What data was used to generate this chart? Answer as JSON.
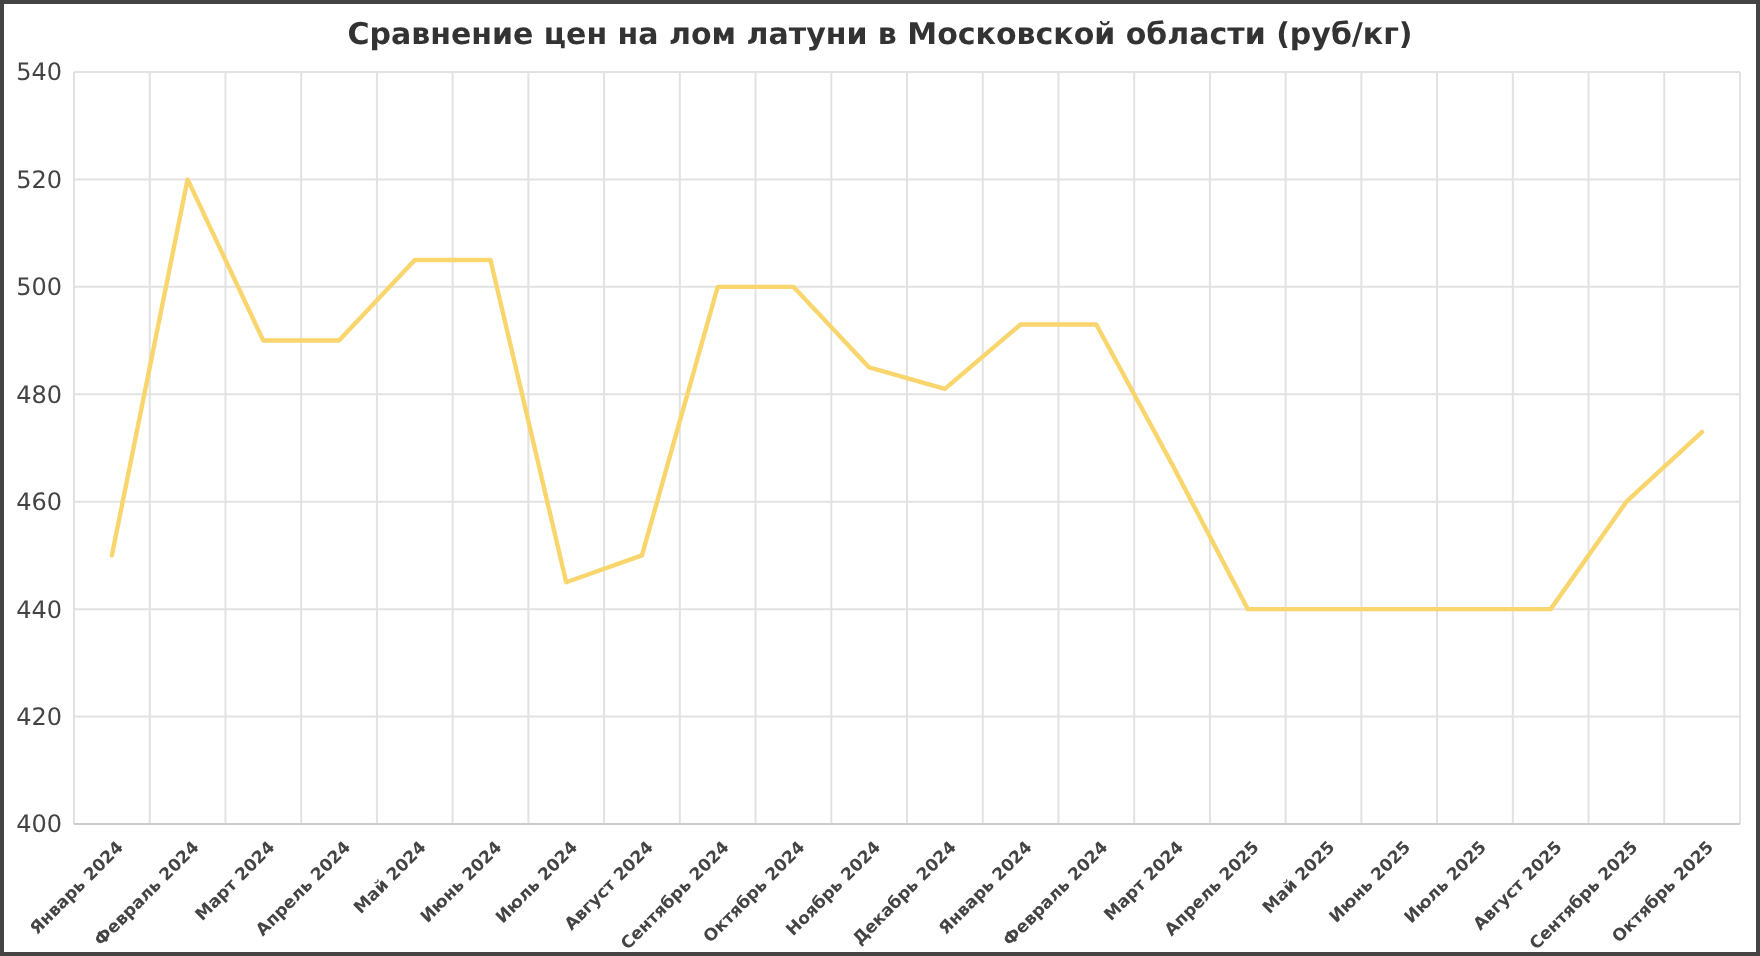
{
  "chart_data": {
    "type": "line",
    "title": "Сравнение цен на лом латуни в Московской области (руб/кг)",
    "categories": [
      "Январь 2024",
      "Февраль 2024",
      "Март 2024",
      "Апрель 2024",
      "Май 2024",
      "Июнь 2024",
      "Июль 2024",
      "Август 2024",
      "Сентябрь 2024",
      "Октябрь 2024",
      "Ноябрь 2024",
      "Декабрь 2024",
      "Январь 2024",
      "Февраль 2024",
      "Март 2024",
      "Апрель 2025",
      "Май 2025",
      "Июнь 2025",
      "Июль 2025",
      "Август 2025",
      "Сентябрь 2025",
      "Октябрь 2025"
    ],
    "series": [
      {
        "color": "#f8d66d",
        "values": [
          450,
          520,
          490,
          490,
          505,
          505,
          445,
          450,
          500,
          500,
          485,
          481,
          493,
          493,
          467,
          440,
          440,
          440,
          440,
          440,
          460,
          473
        ]
      }
    ],
    "ylim": [
      400,
      540
    ],
    "yticks": [
      400,
      420,
      440,
      460,
      480,
      500,
      520,
      540
    ],
    "grid": true,
    "marker": "none",
    "line_style": "solid"
  }
}
